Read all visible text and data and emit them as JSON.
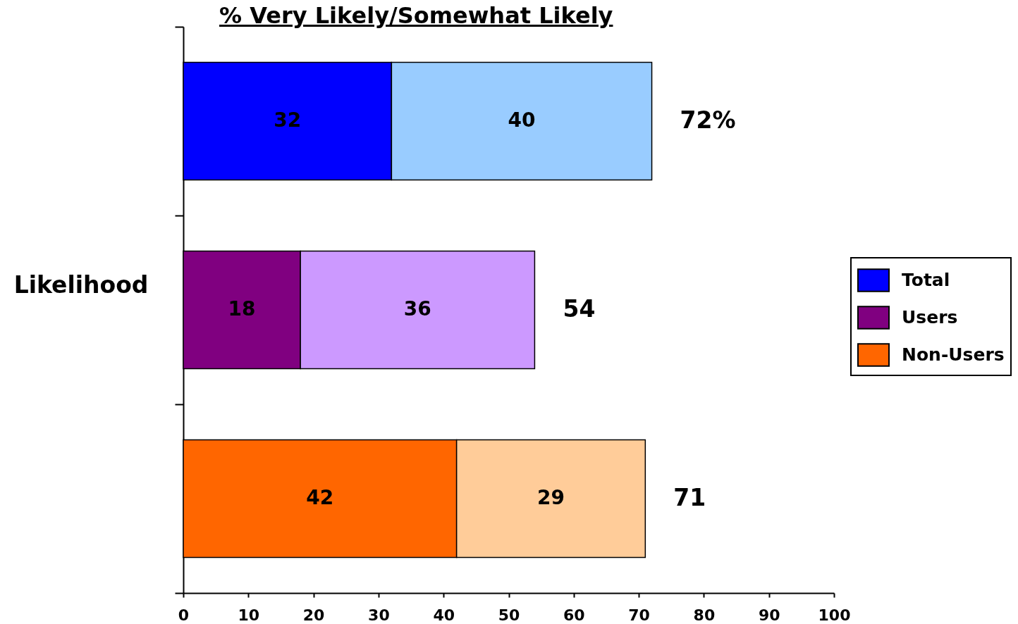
{
  "chart_data": {
    "type": "bar",
    "orientation": "horizontal",
    "stacked": true,
    "title": "% Very Likely/Somewhat Likely",
    "ylabel": "Likelihood",
    "categories": [
      null,
      null,
      null
    ],
    "series": [
      {
        "name": "Total",
        "color": "#0000ff",
        "values": [
          32,
          null,
          null
        ]
      },
      {
        "name": "Users",
        "color": "#800080",
        "values": [
          null,
          18,
          null
        ]
      },
      {
        "name": "Non-Users",
        "color": "#ff6600",
        "values": [
          null,
          null,
          42
        ]
      },
      {
        "colors": [
          "#99ccff",
          "#cc99ff",
          "#ffcc99"
        ],
        "values": [
          40,
          36,
          29
        ]
      }
    ],
    "totals": [
      "72%",
      "54",
      "71"
    ],
    "data_labels": true,
    "xlim": [
      0,
      100
    ],
    "xticks": [
      0,
      10,
      20,
      30,
      40,
      50,
      60,
      70,
      80,
      90,
      100
    ],
    "legend": "right",
    "grid": false
  }
}
